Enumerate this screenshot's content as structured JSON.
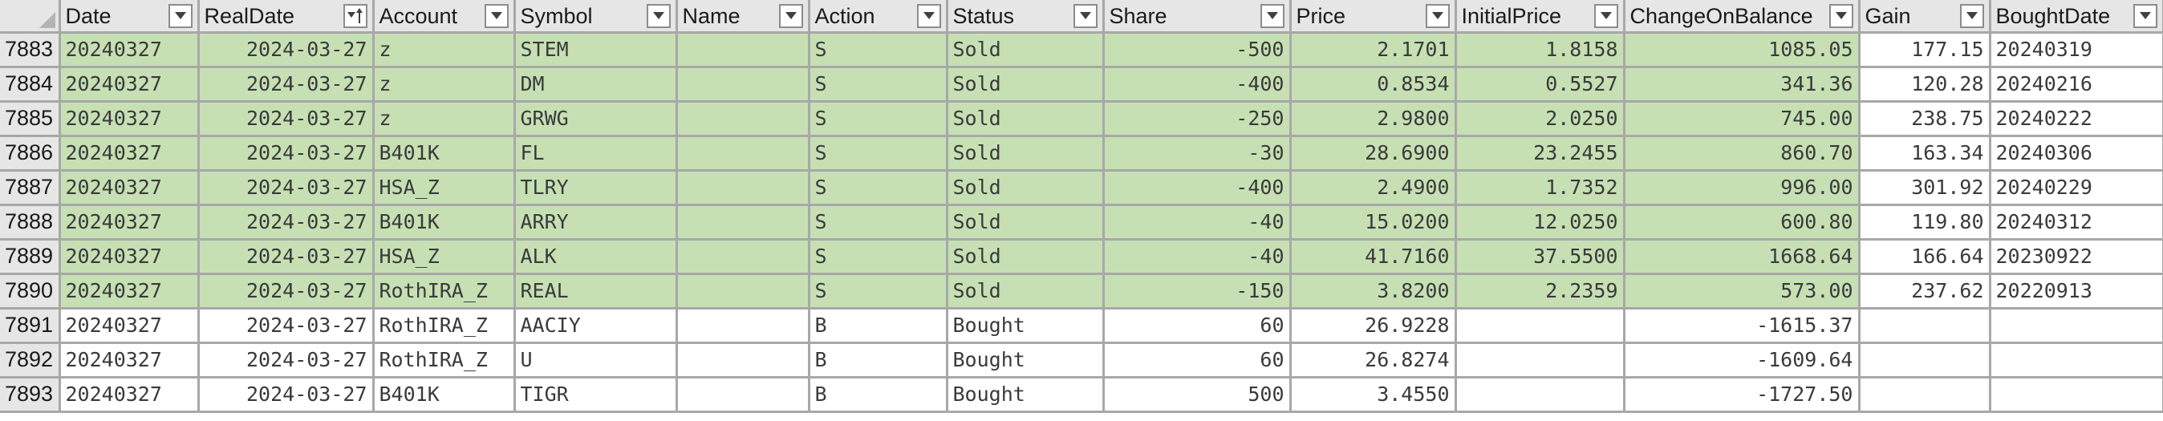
{
  "columns": [
    "Date",
    "RealDate",
    "Account",
    "Symbol",
    "Name",
    "Action",
    "Status",
    "Share",
    "Price",
    "InitialPrice",
    "ChangeOnBalance",
    "Gain",
    "BoughtDate"
  ],
  "sort": {
    "column": "RealDate",
    "direction": "descending"
  },
  "colors": {
    "sold_fill": "#c6e0b4",
    "header_fill": "#e6e6e6",
    "grid_line": "#a8a8a8"
  },
  "rows": [
    {
      "n": "7883",
      "Date": "20240327",
      "RealDate": "2024-03-27",
      "Account": "z",
      "Symbol": "STEM",
      "Name": "",
      "Action": "S",
      "Status": "Sold",
      "Share": "-500",
      "Price": "2.1701",
      "InitialPrice": "1.8158",
      "ChangeOnBalance": "1085.05",
      "Gain": "177.15",
      "BoughtDate": "20240319",
      "highlight": true
    },
    {
      "n": "7884",
      "Date": "20240327",
      "RealDate": "2024-03-27",
      "Account": "z",
      "Symbol": "DM",
      "Name": "",
      "Action": "S",
      "Status": "Sold",
      "Share": "-400",
      "Price": "0.8534",
      "InitialPrice": "0.5527",
      "ChangeOnBalance": "341.36",
      "Gain": "120.28",
      "BoughtDate": "20240216",
      "highlight": true
    },
    {
      "n": "7885",
      "Date": "20240327",
      "RealDate": "2024-03-27",
      "Account": "z",
      "Symbol": "GRWG",
      "Name": "",
      "Action": "S",
      "Status": "Sold",
      "Share": "-250",
      "Price": "2.9800",
      "InitialPrice": "2.0250",
      "ChangeOnBalance": "745.00",
      "Gain": "238.75",
      "BoughtDate": "20240222",
      "highlight": true
    },
    {
      "n": "7886",
      "Date": "20240327",
      "RealDate": "2024-03-27",
      "Account": "B401K",
      "Symbol": "FL",
      "Name": "",
      "Action": "S",
      "Status": "Sold",
      "Share": "-30",
      "Price": "28.6900",
      "InitialPrice": "23.2455",
      "ChangeOnBalance": "860.70",
      "Gain": "163.34",
      "BoughtDate": "20240306",
      "highlight": true
    },
    {
      "n": "7887",
      "Date": "20240327",
      "RealDate": "2024-03-27",
      "Account": "HSA_Z",
      "Symbol": "TLRY",
      "Name": "",
      "Action": "S",
      "Status": "Sold",
      "Share": "-400",
      "Price": "2.4900",
      "InitialPrice": "1.7352",
      "ChangeOnBalance": "996.00",
      "Gain": "301.92",
      "BoughtDate": "20240229",
      "highlight": true
    },
    {
      "n": "7888",
      "Date": "20240327",
      "RealDate": "2024-03-27",
      "Account": "B401K",
      "Symbol": "ARRY",
      "Name": "",
      "Action": "S",
      "Status": "Sold",
      "Share": "-40",
      "Price": "15.0200",
      "InitialPrice": "12.0250",
      "ChangeOnBalance": "600.80",
      "Gain": "119.80",
      "BoughtDate": "20240312",
      "highlight": true
    },
    {
      "n": "7889",
      "Date": "20240327",
      "RealDate": "2024-03-27",
      "Account": "HSA_Z",
      "Symbol": "ALK",
      "Name": "",
      "Action": "S",
      "Status": "Sold",
      "Share": "-40",
      "Price": "41.7160",
      "InitialPrice": "37.5500",
      "ChangeOnBalance": "1668.64",
      "Gain": "166.64",
      "BoughtDate": "20230922",
      "highlight": true
    },
    {
      "n": "7890",
      "Date": "20240327",
      "RealDate": "2024-03-27",
      "Account": "RothIRA_Z",
      "Symbol": "REAL",
      "Name": "",
      "Action": "S",
      "Status": "Sold",
      "Share": "-150",
      "Price": "3.8200",
      "InitialPrice": "2.2359",
      "ChangeOnBalance": "573.00",
      "Gain": "237.62",
      "BoughtDate": "20220913",
      "highlight": true
    },
    {
      "n": "7891",
      "Date": "20240327",
      "RealDate": "2024-03-27",
      "Account": "RothIRA_Z",
      "Symbol": "AACIY",
      "Name": "",
      "Action": "B",
      "Status": "Bought",
      "Share": "60",
      "Price": "26.9228",
      "InitialPrice": "",
      "ChangeOnBalance": "-1615.37",
      "Gain": "",
      "BoughtDate": "",
      "highlight": false
    },
    {
      "n": "7892",
      "Date": "20240327",
      "RealDate": "2024-03-27",
      "Account": "RothIRA_Z",
      "Symbol": "U",
      "Name": "",
      "Action": "B",
      "Status": "Bought",
      "Share": "60",
      "Price": "26.8274",
      "InitialPrice": "",
      "ChangeOnBalance": "-1609.64",
      "Gain": "",
      "BoughtDate": "",
      "highlight": false
    },
    {
      "n": "7893",
      "Date": "20240327",
      "RealDate": "2024-03-27",
      "Account": "B401K",
      "Symbol": "TIGR",
      "Name": "",
      "Action": "B",
      "Status": "Bought",
      "Share": "500",
      "Price": "3.4550",
      "InitialPrice": "",
      "ChangeOnBalance": "-1727.50",
      "Gain": "",
      "BoughtDate": "",
      "highlight": false
    }
  ]
}
